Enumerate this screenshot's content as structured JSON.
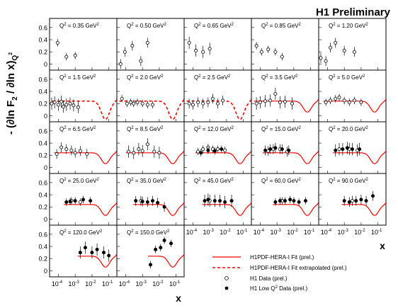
{
  "header": {
    "title": "H1 Preliminary"
  },
  "axes": {
    "ylabel_main": "- (∂ln F",
    "ylabel_sub1": "2",
    "ylabel_mid": " / ∂ln x)",
    "ylabel_sub2": "Q",
    "ylabel_sup2": "2",
    "xlabel": "x",
    "yticks": [
      "0",
      "0.2",
      "0.4",
      "0.6"
    ],
    "xtick_base": "10",
    "xtick_exps": [
      "-4",
      "-3",
      "-2",
      "-1"
    ]
  },
  "legend": {
    "fit": "H1PDF-HERA-I Fit (prel.)",
    "fit_extrapolated": "H1PDF-HERA-I Fit extrapolated (prel.)",
    "h1_data": "H1 Data (prel.)",
    "low_q2_prefix": "H1 Low Q",
    "low_q2_sup": "2",
    "low_q2_suffix": " Data (prel.)"
  },
  "colors": {
    "fit": "#ff0000",
    "data": "#000000",
    "frame": "#000000"
  },
  "chart_data": {
    "type": "scatter",
    "x_scale": "log",
    "xlim": [
      3e-05,
      0.3
    ],
    "ylim": [
      -0.1,
      0.75
    ],
    "grid": false,
    "legend_placement": "bottom-right",
    "panels": [
      {
        "q2": "0.35",
        "open": [
          [
            9e-05,
            0.35
          ],
          [
            0.0003,
            0.12
          ],
          [
            0.001,
            0.14
          ]
        ],
        "closed": [],
        "fit": "none"
      },
      {
        "q2": "0.50",
        "open": [
          [
            5e-05,
            0.0
          ],
          [
            9e-05,
            0.2
          ],
          [
            0.00025,
            0.3
          ],
          [
            0.0008,
            0.05
          ],
          [
            0.002,
            0.35
          ]
        ],
        "closed": [],
        "fit": "none"
      },
      {
        "q2": "0.65",
        "open": [
          [
            6e-05,
            0.35
          ],
          [
            0.00015,
            0.22
          ],
          [
            0.0004,
            0.2
          ],
          [
            0.001,
            0.25
          ]
        ],
        "closed": [],
        "fit": "none"
      },
      {
        "q2": "0.85",
        "open": [
          [
            6e-05,
            0.3
          ],
          [
            0.00012,
            0.2
          ],
          [
            0.0003,
            0.24
          ],
          [
            0.0008,
            0.2
          ],
          [
            0.002,
            0.12
          ]
        ],
        "closed": [],
        "fit": "none"
      },
      {
        "q2": "1.20",
        "open": [
          [
            4e-05,
            0.1
          ],
          [
            8e-05,
            0.05
          ],
          [
            0.00015,
            0.27
          ],
          [
            0.0003,
            0.35
          ],
          [
            0.001,
            0.22
          ],
          [
            0.004,
            0.2
          ]
        ],
        "closed": [],
        "fit": "none"
      },
      {
        "q2": "1.5",
        "open": [
          [
            4e-05,
            0.2
          ],
          [
            6e-05,
            0.22
          ],
          [
            0.0001,
            0.18
          ],
          [
            0.00015,
            0.23
          ],
          [
            0.0002,
            0.15
          ],
          [
            0.0003,
            0.18
          ],
          [
            0.0005,
            0.2
          ],
          [
            0.0008,
            0.17
          ],
          [
            0.0015,
            0.14
          ]
        ],
        "closed": [],
        "fit": "dashed"
      },
      {
        "q2": "2.0",
        "open": [
          [
            6e-05,
            0.28
          ],
          [
            0.00012,
            0.2
          ],
          [
            0.0002,
            0.22
          ],
          [
            0.0003,
            0.2
          ],
          [
            0.0005,
            0.22
          ],
          [
            0.001,
            0.2
          ],
          [
            0.002,
            0.18
          ],
          [
            0.004,
            0.18
          ]
        ],
        "closed": [],
        "fit": "dashed"
      },
      {
        "q2": "2.5",
        "open": [
          [
            6e-05,
            0.2
          ],
          [
            0.0001,
            0.18
          ],
          [
            0.0002,
            0.22
          ],
          [
            0.0004,
            0.2
          ],
          [
            0.0008,
            0.22
          ],
          [
            0.0015,
            0.28
          ],
          [
            0.003,
            0.2
          ],
          [
            0.006,
            0.25
          ]
        ],
        "closed": [],
        "fit": "dashed"
      },
      {
        "q2": "3.5",
        "open": [
          [
            6e-05,
            0.2
          ],
          [
            0.0001,
            0.22
          ],
          [
            0.0002,
            0.24
          ],
          [
            0.0004,
            0.25
          ],
          [
            0.0008,
            0.36
          ],
          [
            0.0015,
            0.22
          ],
          [
            0.003,
            0.23
          ],
          [
            0.008,
            0.2
          ]
        ],
        "closed": [],
        "fit": "solid"
      },
      {
        "q2": "5.0",
        "open": [
          [
            8e-05,
            0.22
          ],
          [
            0.00015,
            0.25
          ],
          [
            0.0003,
            0.28
          ],
          [
            0.0005,
            0.3
          ],
          [
            0.001,
            0.25
          ],
          [
            0.002,
            0.22
          ],
          [
            0.004,
            0.25
          ],
          [
            0.01,
            0.22
          ]
        ],
        "closed": [],
        "fit": "solid"
      },
      {
        "q2": "6.5",
        "open": [
          [
            8e-05,
            0.22
          ],
          [
            0.00015,
            0.33
          ],
          [
            0.0003,
            0.3
          ],
          [
            0.0006,
            0.28
          ],
          [
            0.001,
            0.24
          ],
          [
            0.002,
            0.27
          ],
          [
            0.005,
            0.22
          ]
        ],
        "closed": [],
        "fit": "solid"
      },
      {
        "q2": "8.5",
        "open": [
          [
            0.00015,
            0.26
          ],
          [
            0.0003,
            0.24
          ],
          [
            0.0006,
            0.3
          ],
          [
            0.001,
            0.27
          ],
          [
            0.002,
            0.38
          ],
          [
            0.005,
            0.26
          ],
          [
            0.01,
            0.24
          ]
        ],
        "closed": [],
        "fit": "solid"
      },
      {
        "q2": "12.0",
        "open": [
          [
            0.0002,
            0.26
          ],
          [
            0.0004,
            0.3
          ],
          [
            0.0008,
            0.33
          ],
          [
            0.0015,
            0.3
          ],
          [
            0.003,
            0.3
          ],
          [
            0.008,
            0.28
          ]
        ],
        "closed": [
          [
            0.0003,
            0.24
          ],
          [
            0.0008,
            0.28
          ],
          [
            0.002,
            0.27
          ],
          [
            0.005,
            0.3
          ]
        ],
        "fit": "solid"
      },
      {
        "q2": "15.0",
        "open": [
          [
            0.0003,
            0.27
          ],
          [
            0.0006,
            0.3
          ],
          [
            0.0015,
            0.3
          ],
          [
            0.004,
            0.26
          ]
        ],
        "closed": [
          [
            0.0002,
            0.28
          ],
          [
            0.0004,
            0.3
          ],
          [
            0.0008,
            0.32
          ],
          [
            0.002,
            0.3
          ],
          [
            0.005,
            0.28
          ]
        ],
        "fit": "solid"
      },
      {
        "q2": "20.0",
        "open": [
          [
            0.0005,
            0.3
          ],
          [
            0.002,
            0.3
          ],
          [
            0.006,
            0.28
          ]
        ],
        "closed": [
          [
            0.0003,
            0.28
          ],
          [
            0.0008,
            0.3
          ],
          [
            0.0015,
            0.32
          ],
          [
            0.003,
            0.3
          ],
          [
            0.008,
            0.3
          ]
        ],
        "fit": "solid"
      },
      {
        "q2": "25.0",
        "open": [
          [
            0.0006,
            0.3
          ],
          [
            0.002,
            0.28
          ]
        ],
        "closed": [
          [
            0.0003,
            0.28
          ],
          [
            0.0005,
            0.29
          ],
          [
            0.001,
            0.3
          ],
          [
            0.003,
            0.32
          ],
          [
            0.008,
            0.3
          ]
        ],
        "fit": "solid"
      },
      {
        "q2": "35.0",
        "open": [
          [
            0.0008,
            0.3
          ]
        ],
        "closed": [
          [
            0.0004,
            0.3
          ],
          [
            0.001,
            0.29
          ],
          [
            0.002,
            0.28
          ],
          [
            0.004,
            0.3
          ],
          [
            0.008,
            0.27
          ],
          [
            0.02,
            0.2
          ]
        ],
        "fit": "solid"
      },
      {
        "q2": "45.0",
        "open": [
          [
            0.001,
            0.3
          ]
        ],
        "closed": [
          [
            0.0005,
            0.3
          ],
          [
            0.0008,
            0.32
          ],
          [
            0.002,
            0.3
          ],
          [
            0.004,
            0.3
          ],
          [
            0.008,
            0.28
          ],
          [
            0.02,
            0.3
          ]
        ],
        "fit": "solid"
      },
      {
        "q2": "60.0",
        "open": [
          [
            0.002,
            0.3
          ]
        ],
        "closed": [
          [
            0.0008,
            0.28
          ],
          [
            0.0015,
            0.3
          ],
          [
            0.003,
            0.3
          ],
          [
            0.006,
            0.32
          ],
          [
            0.01,
            0.3
          ],
          [
            0.02,
            0.28
          ],
          [
            0.05,
            0.3
          ]
        ],
        "fit": "solid"
      },
      {
        "q2": "90.0",
        "open": [
          [
            0.003,
            0.3
          ]
        ],
        "closed": [
          [
            0.001,
            0.3
          ],
          [
            0.002,
            0.28
          ],
          [
            0.005,
            0.3
          ],
          [
            0.01,
            0.32
          ],
          [
            0.02,
            0.3
          ],
          [
            0.05,
            0.38
          ]
        ],
        "fit": "solid"
      },
      {
        "q2": "120.0",
        "open": [],
        "closed": [
          [
            0.002,
            0.3
          ],
          [
            0.004,
            0.38
          ],
          [
            0.01,
            0.3
          ],
          [
            0.02,
            0.35
          ],
          [
            0.05,
            0.3
          ],
          [
            0.1,
            0.25
          ]
        ],
        "fit": "solid"
      },
      {
        "q2": "150.0",
        "open": [],
        "closed": [
          [
            0.003,
            0.1
          ],
          [
            0.006,
            0.35
          ],
          [
            0.012,
            0.38
          ],
          [
            0.02,
            0.5
          ],
          [
            0.05,
            0.45
          ]
        ],
        "fit": "solid"
      }
    ]
  }
}
